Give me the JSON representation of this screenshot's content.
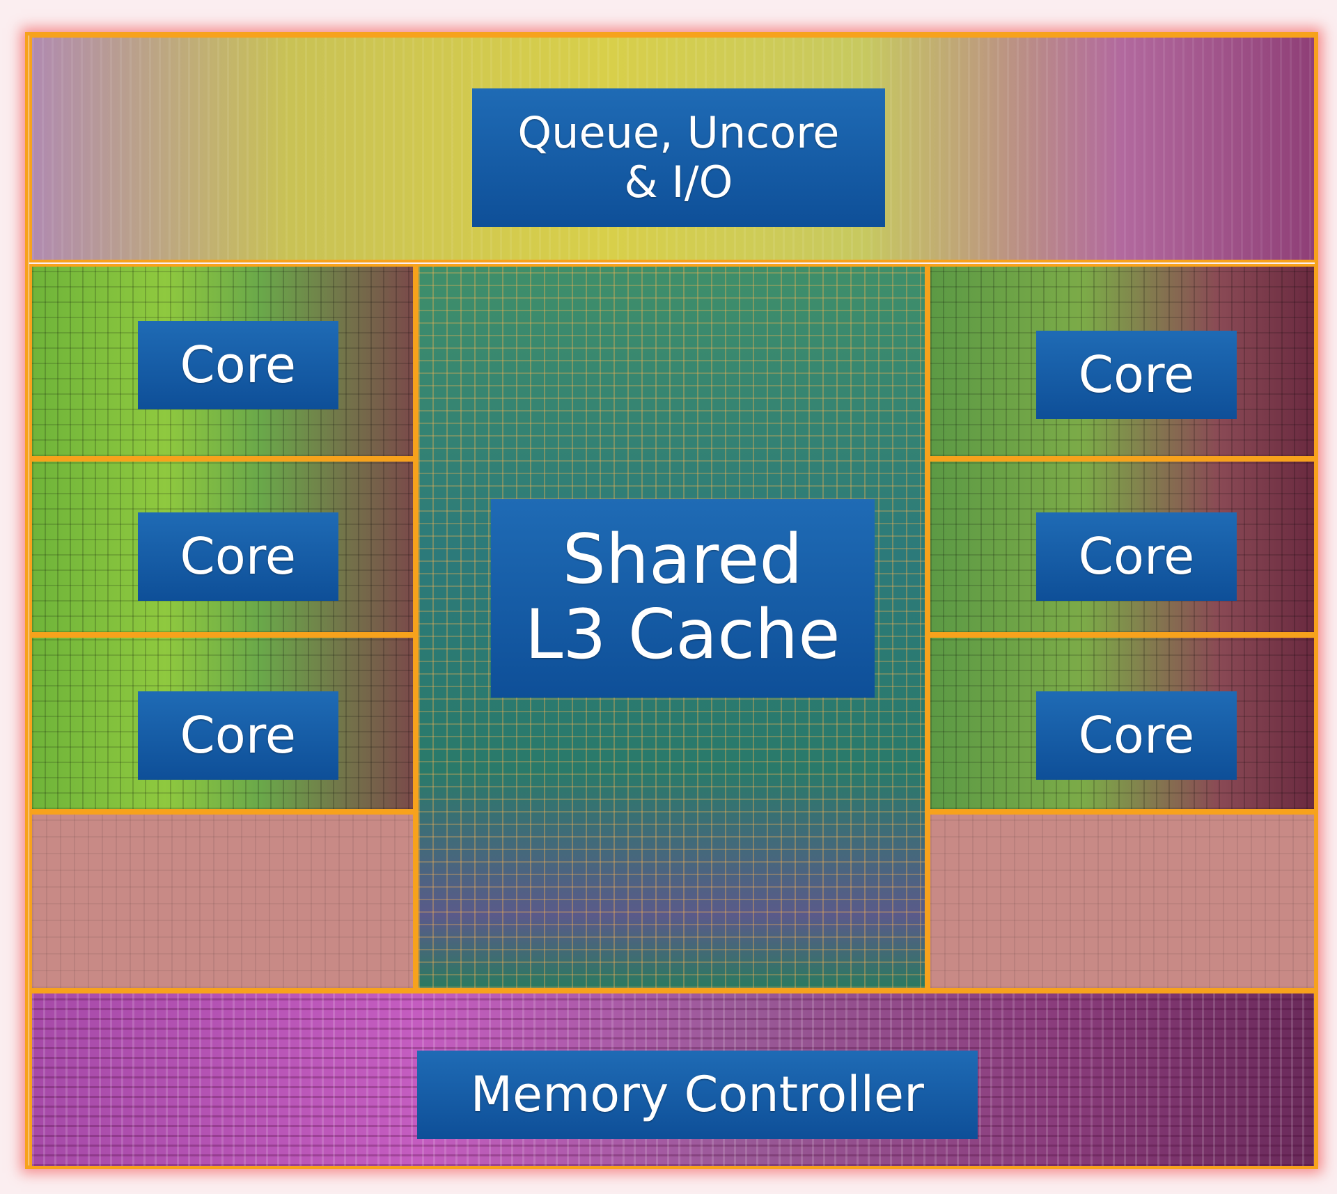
{
  "diagram": {
    "regions": {
      "uncore": {
        "label": "Queue, Uncore\n& I/O"
      },
      "cores": [
        {
          "label": "Core",
          "side": "left",
          "row": 1
        },
        {
          "label": "Core",
          "side": "left",
          "row": 2
        },
        {
          "label": "Core",
          "side": "left",
          "row": 3
        },
        {
          "label": "Core",
          "side": "right",
          "row": 1
        },
        {
          "label": "Core",
          "side": "right",
          "row": 2
        },
        {
          "label": "Core",
          "side": "right",
          "row": 3
        }
      ],
      "cache": {
        "label": "Shared\nL3 Cache"
      },
      "memory": {
        "label": "Memory Controller"
      }
    },
    "colors": {
      "border": "#f7a21c",
      "label_bg": "#1a5fa8",
      "label_text": "#ffffff"
    }
  }
}
